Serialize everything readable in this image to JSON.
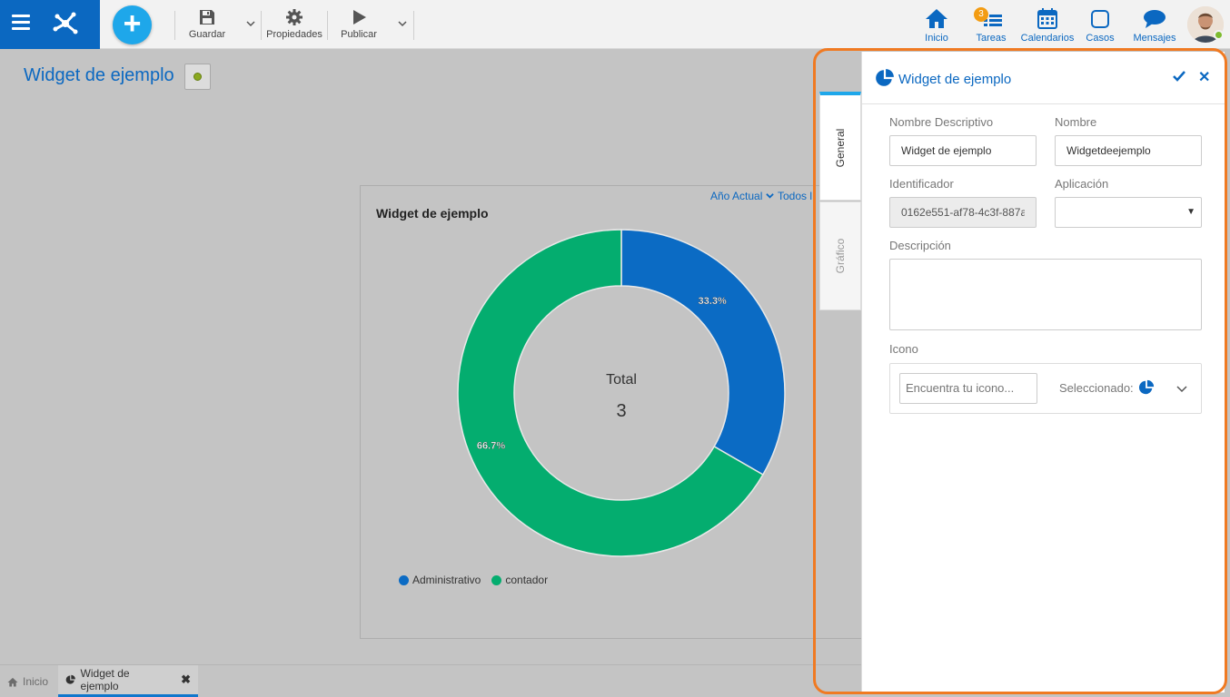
{
  "toolbar": {
    "save_label": "Guardar",
    "properties_label": "Propiedades",
    "publish_label": "Publicar"
  },
  "nav": {
    "home_label": "Inicio",
    "tasks_label": "Tareas",
    "tasks_badge": "3",
    "calendars_label": "Calendarios",
    "cases_label": "Casos",
    "messages_label": "Mensajes"
  },
  "page": {
    "title": "Widget de ejemplo"
  },
  "widget": {
    "title": "Widget de ejemplo",
    "filter_year": "Año Actual",
    "filter_all": "Todos l",
    "center_label": "Total",
    "center_value": "3"
  },
  "chart_data": {
    "type": "pie",
    "title": "Widget de ejemplo",
    "categories": [
      "Administrativo",
      "contador"
    ],
    "values": [
      1,
      2
    ],
    "labels": [
      "33.3%",
      "66.7%"
    ],
    "colors": [
      "#0b6bc4",
      "#04ad6f"
    ],
    "total_label": "Total",
    "total": 3,
    "legend_position": "bottom-left"
  },
  "bottom_tabs": {
    "home_label": "Inicio",
    "active_label": "Widget de ejemplo"
  },
  "panel": {
    "title": "Widget de ejemplo",
    "tabs": [
      "General",
      "Gráfico"
    ],
    "fields": {
      "nombre_descriptivo_label": "Nombre Descriptivo",
      "nombre_descriptivo_value": "Widget de ejemplo",
      "nombre_label": "Nombre",
      "nombre_value": "Widgetdeejemplo",
      "identificador_label": "Identificador",
      "identificador_value": "0162e551-af78-4c3f-887a",
      "aplicacion_label": "Aplicación",
      "aplicacion_value": "",
      "descripcion_label": "Descripción",
      "icono_label": "Icono",
      "icono_search_placeholder": "Encuentra tu icono...",
      "seleccionado_label": "Seleccionado:"
    }
  },
  "colors": {
    "brand": "#0b68c1",
    "accent": "#1ea7ea",
    "highlight": "#f07a22"
  }
}
